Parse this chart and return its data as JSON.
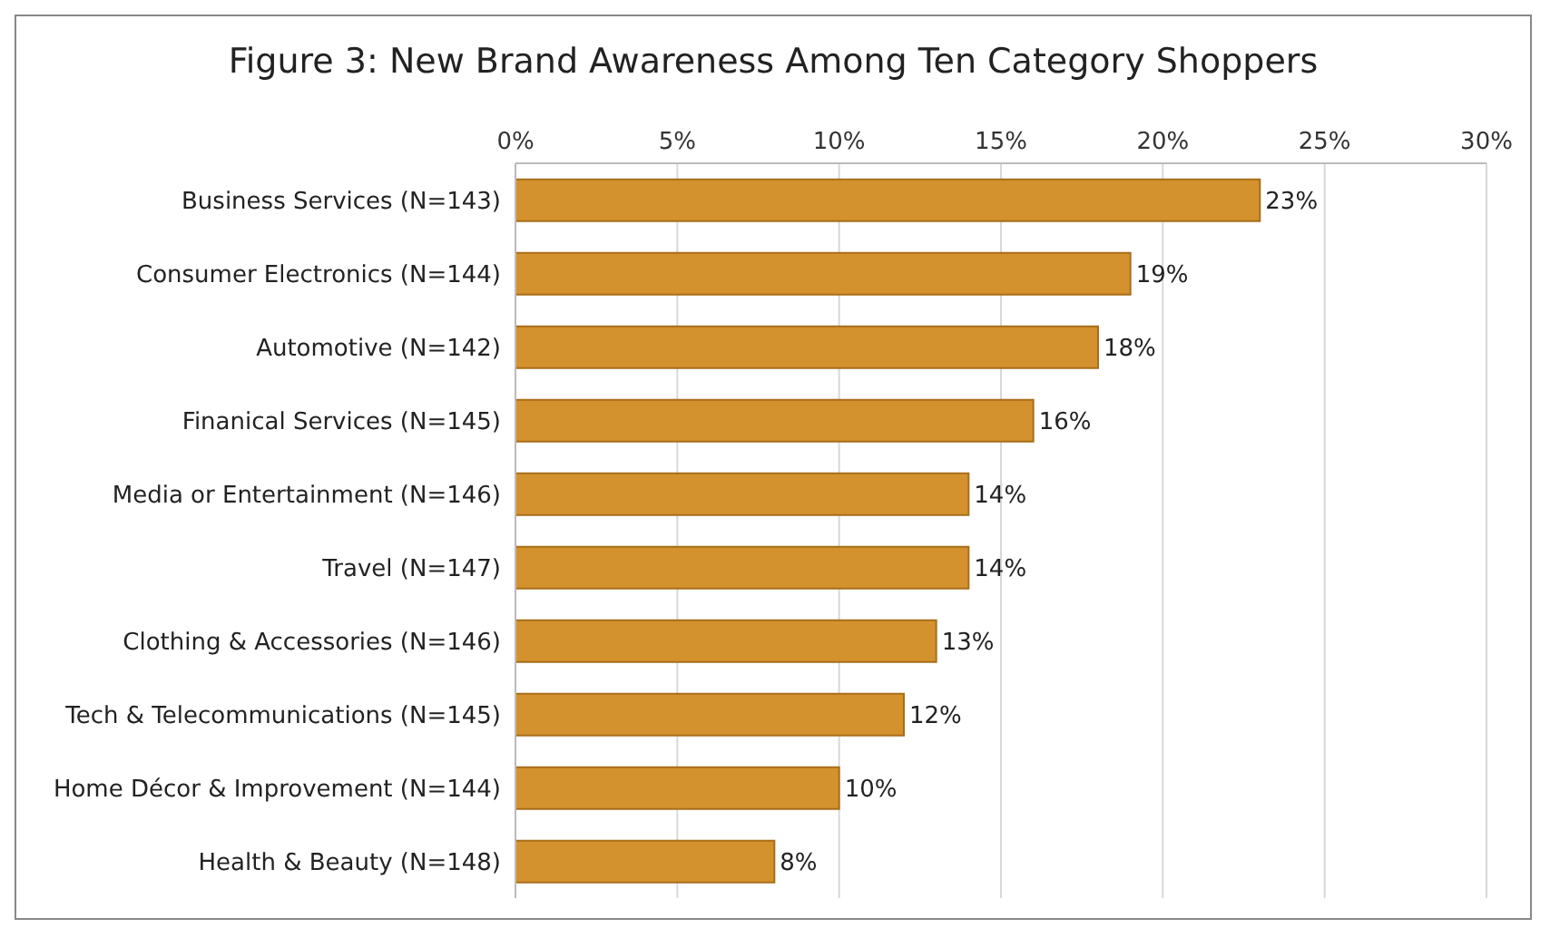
{
  "chart_data": {
    "type": "bar",
    "orientation": "horizontal",
    "title": "Figure 3:  New Brand Awareness Among Ten Category Shoppers",
    "categories": [
      "Business Services (N=143)",
      "Consumer Electronics (N=144)",
      "Automotive (N=142)",
      "Finanical Services (N=145)",
      "Media or Entertainment (N=146)",
      "Travel (N=147)",
      "Clothing & Accessories (N=146)",
      "Tech & Telecommunications (N=145)",
      "Home Décor & Improvement (N=144)",
      "Health & Beauty (N=148)"
    ],
    "values": [
      23,
      19,
      18,
      16,
      14,
      14,
      13,
      12,
      10,
      8
    ],
    "value_labels": [
      "23%",
      "19%",
      "18%",
      "16%",
      "14%",
      "14%",
      "13%",
      "12%",
      "10%",
      "8%"
    ],
    "color": "#d4922e",
    "xlim": [
      0,
      30
    ],
    "xticks": [
      {
        "value": 0,
        "label": "0%"
      },
      {
        "value": 5,
        "label": "5%"
      },
      {
        "value": 10,
        "label": "10%"
      },
      {
        "value": 15,
        "label": "15%"
      },
      {
        "value": 20,
        "label": "20%"
      },
      {
        "value": 25,
        "label": "25%"
      },
      {
        "value": 30,
        "label": "30%"
      }
    ],
    "grid": "x",
    "legend": false
  }
}
